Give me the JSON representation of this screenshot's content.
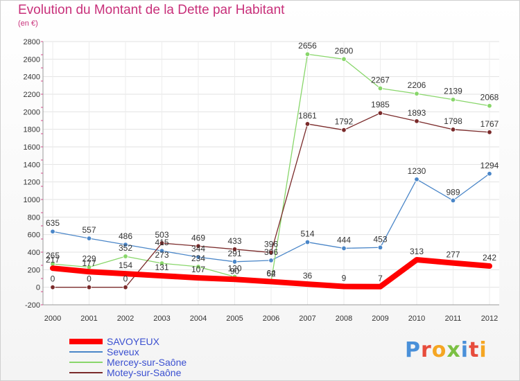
{
  "title": "Evolution du Montant de la Dette par Habitant",
  "subtitle": "(en €)",
  "logo": {
    "text": "Proxiti",
    "colors": [
      "#4a90d9",
      "#e74c3c",
      "#f5a623",
      "#7bc043",
      "#4a90d9",
      "#e74c3c",
      "#f5a623"
    ]
  },
  "chart_data": {
    "type": "line",
    "title": "Evolution du Montant de la Dette par Habitant",
    "subtitle": "(en €)",
    "x": [
      "2000",
      "2001",
      "2002",
      "2003",
      "2004",
      "2005",
      "2006",
      "2007",
      "2008",
      "2009",
      "2010",
      "2011",
      "2012"
    ],
    "ylim": [
      -200,
      2800
    ],
    "yticks": [
      -200,
      0,
      200,
      400,
      600,
      800,
      1000,
      1200,
      1400,
      1600,
      1800,
      2000,
      2200,
      2400,
      2600,
      2800
    ],
    "grid": true,
    "legend_position": "bottom-left",
    "series": [
      {
        "name": "SAVOYEUX",
        "color": "#ff0000",
        "width": 8,
        "values": [
          217,
          177,
          154,
          131,
          107,
          90,
          64,
          36,
          9,
          7,
          313,
          277,
          242
        ]
      },
      {
        "name": "Seveux",
        "color": "#4a86c8",
        "width": 1.3,
        "values": [
          635,
          557,
          486,
          415,
          344,
          291,
          306,
          514,
          444,
          453,
          1230,
          989,
          1294
        ]
      },
      {
        "name": "Mercey-sur-Saône",
        "color": "#88d66a",
        "width": 1.3,
        "values": [
          265,
          229,
          352,
          273,
          234,
          120,
          62,
          2656,
          2600,
          2267,
          2206,
          2139,
          2068
        ]
      },
      {
        "name": "Motey-sur-Saône",
        "color": "#7a2a2a",
        "width": 1.3,
        "values": [
          0,
          0,
          0,
          503,
          469,
          433,
          396,
          1861,
          1792,
          1985,
          1893,
          1798,
          1767
        ]
      }
    ]
  }
}
